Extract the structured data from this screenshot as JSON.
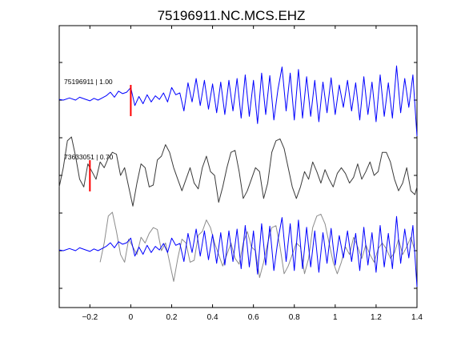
{
  "chart_data": {
    "type": "line",
    "title": "75196911.NC.MCS.EHZ",
    "xlabel": "",
    "ylabel": "",
    "xlim": [
      -0.35,
      1.4
    ],
    "x_ticks": [
      -0.2,
      0,
      0.2,
      0.4,
      0.6,
      0.8,
      1,
      1.2,
      1.4
    ],
    "x_tick_labels": [
      "−0.2",
      "0",
      "0.2",
      "0.4",
      "0.6",
      "0.8",
      "1",
      "1.2",
      "1.4"
    ],
    "y_ticks_unlabeled": 7,
    "grid": false,
    "colors": {
      "blue": "#0000ff",
      "dark_gray": "#3a3a3a",
      "light_gray": "#8c8c8c",
      "pick": "#ff0000"
    },
    "series": [
      {
        "name": "75196911 | 1.00",
        "color": "#0000ff",
        "pick_time": 0.0,
        "x": [
          -0.35,
          -0.33,
          -0.3,
          -0.27,
          -0.25,
          -0.22,
          -0.2,
          -0.18,
          -0.16,
          -0.14,
          -0.12,
          -0.1,
          -0.08,
          -0.06,
          -0.04,
          -0.02,
          0.0,
          0.02,
          0.04,
          0.06,
          0.08,
          0.1,
          0.12,
          0.14,
          0.16,
          0.18,
          0.2,
          0.22,
          0.24,
          0.26,
          0.28,
          0.3,
          0.32,
          0.34,
          0.36,
          0.38,
          0.4,
          0.42,
          0.44,
          0.46,
          0.48,
          0.5,
          0.52,
          0.54,
          0.56,
          0.58,
          0.6,
          0.62,
          0.64,
          0.66,
          0.68,
          0.7,
          0.72,
          0.74,
          0.76,
          0.78,
          0.8,
          0.82,
          0.84,
          0.86,
          0.88,
          0.9,
          0.92,
          0.94,
          0.96,
          0.98,
          1.0,
          1.02,
          1.04,
          1.06,
          1.08,
          1.1,
          1.12,
          1.14,
          1.16,
          1.18,
          1.2,
          1.22,
          1.24,
          1.26,
          1.28,
          1.3,
          1.32,
          1.34,
          1.36,
          1.38,
          1.4
        ],
        "y": [
          0.02,
          0.0,
          0.06,
          0.0,
          0.08,
          0.02,
          -0.02,
          0.05,
          0.0,
          0.06,
          0.12,
          0.22,
          0.08,
          0.25,
          0.18,
          0.22,
          0.35,
          -0.15,
          0.1,
          -0.1,
          0.15,
          -0.05,
          0.12,
          0.02,
          0.2,
          -0.05,
          0.35,
          0.15,
          0.2,
          -0.3,
          0.48,
          -0.05,
          0.6,
          -0.15,
          0.55,
          -0.25,
          0.45,
          -0.35,
          0.5,
          -0.4,
          0.55,
          -0.3,
          0.6,
          -0.5,
          0.7,
          -0.45,
          0.55,
          -0.65,
          0.75,
          -0.4,
          0.68,
          -0.55,
          0.3,
          0.92,
          -0.3,
          0.75,
          -0.55,
          0.85,
          -0.5,
          0.65,
          -0.45,
          0.55,
          -0.6,
          0.5,
          -0.35,
          0.62,
          -0.4,
          0.42,
          -0.2,
          0.55,
          -0.3,
          0.48,
          -0.55,
          0.65,
          -0.4,
          0.5,
          -0.6,
          0.7,
          -0.45,
          0.48,
          -0.5,
          0.95,
          -0.35,
          0.6,
          -0.2,
          0.7,
          -1.0
        ]
      },
      {
        "name": "73633051 | 0.70",
        "color": "#3a3a3a",
        "pick_time": -0.2,
        "x": [
          -0.35,
          -0.33,
          -0.31,
          -0.29,
          -0.27,
          -0.25,
          -0.23,
          -0.21,
          -0.19,
          -0.17,
          -0.15,
          -0.13,
          -0.11,
          -0.09,
          -0.07,
          -0.05,
          -0.03,
          -0.01,
          0.01,
          0.03,
          0.05,
          0.07,
          0.09,
          0.11,
          0.13,
          0.15,
          0.17,
          0.19,
          0.21,
          0.23,
          0.25,
          0.27,
          0.29,
          0.31,
          0.33,
          0.35,
          0.37,
          0.39,
          0.41,
          0.43,
          0.45,
          0.47,
          0.49,
          0.51,
          0.53,
          0.55,
          0.57,
          0.59,
          0.61,
          0.63,
          0.65,
          0.67,
          0.69,
          0.71,
          0.73,
          0.75,
          0.77,
          0.79,
          0.81,
          0.83,
          0.85,
          0.87,
          0.89,
          0.91,
          0.93,
          0.95,
          0.97,
          0.99,
          1.01,
          1.03,
          1.05,
          1.07,
          1.09,
          1.11,
          1.13,
          1.15,
          1.17,
          1.19,
          1.21,
          1.23,
          1.25,
          1.27,
          1.29,
          1.31,
          1.33,
          1.35,
          1.37,
          1.39,
          1.4
        ],
        "y": [
          -0.3,
          0.2,
          0.9,
          1.0,
          0.5,
          -0.1,
          -0.3,
          0.3,
          0.1,
          -0.1,
          0.35,
          0.2,
          0.45,
          0.6,
          0.55,
          0.0,
          0.2,
          -0.3,
          -0.8,
          -0.2,
          0.3,
          0.2,
          -0.3,
          -0.25,
          0.4,
          0.5,
          0.8,
          0.6,
          0.2,
          -0.1,
          -0.4,
          -0.1,
          0.2,
          -0.2,
          -0.35,
          0.2,
          0.5,
          0.1,
          0.0,
          -0.7,
          -0.3,
          0.2,
          0.6,
          0.65,
          0.1,
          -0.6,
          -0.4,
          -0.1,
          0.2,
          0.1,
          -0.6,
          -0.2,
          0.6,
          0.9,
          0.95,
          0.7,
          0.2,
          -0.3,
          -0.6,
          -0.3,
          0.1,
          -0.1,
          0.35,
          0.1,
          -0.2,
          0.15,
          -0.1,
          -0.3,
          0.05,
          0.2,
          0.05,
          -0.2,
          -0.05,
          0.3,
          -0.1,
          0.1,
          0.35,
          0.0,
          0.1,
          0.6,
          0.6,
          0.35,
          -0.1,
          -0.4,
          -0.2,
          0.2,
          -0.4,
          -0.5,
          -0.3
        ]
      }
    ],
    "overlay": {
      "description_series": [
        "75196911 | 1.00",
        "73633051 | 0.70"
      ],
      "overlay_color_second": "#8c8c8c"
    },
    "labels": {
      "trace1": "75196911 | 1.00",
      "trace2": "73633051 | 0.70"
    }
  }
}
